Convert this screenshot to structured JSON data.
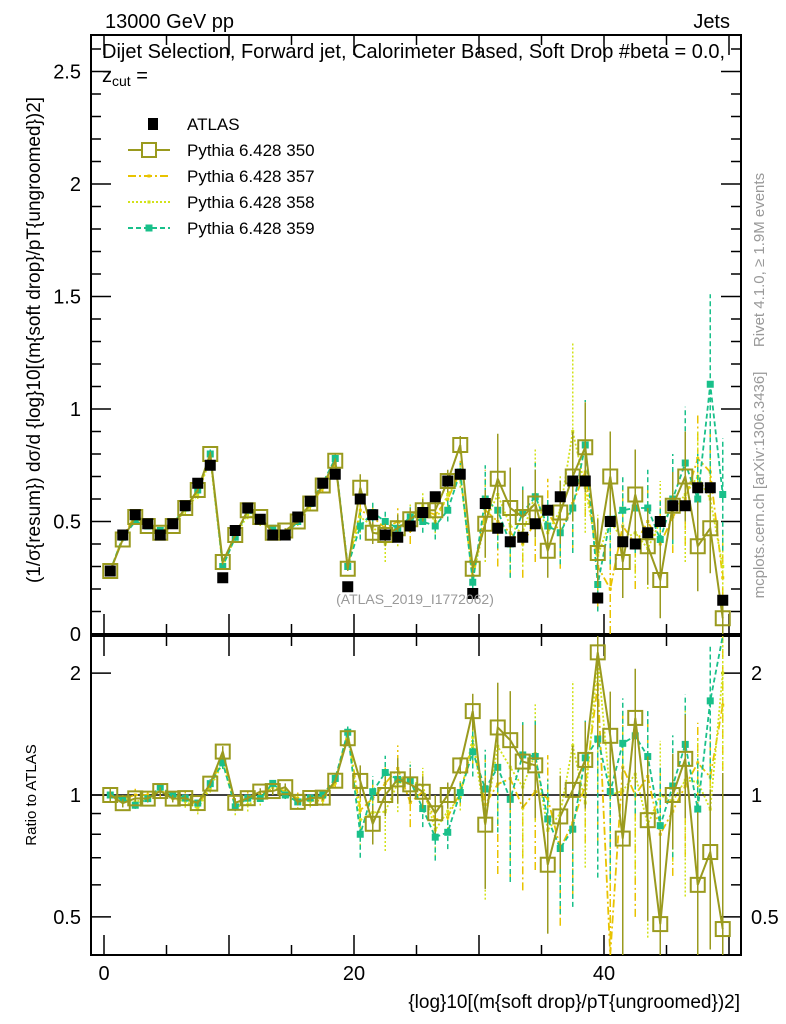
{
  "header": {
    "left": "13000 GeV pp",
    "right": "Jets"
  },
  "side_text": {
    "rivet": "Rivet 4.1.0, ≥ 1.9M events",
    "mcplots": "mcplots.cern.ch [arXiv:1306.3436]"
  },
  "chart_data": [
    {
      "type": "line",
      "title": "Dijet Selection, Forward jet, Calorimeter Based, Soft Drop #beta = 0.0, z",
      "title_sub": "cut",
      "title_tail": " =",
      "ylabel": "(1/σ{resum}) dσ/d {log}10[(m{soft drop}/pT{ungroomed})2]",
      "xlabel": "{log}10[(m{soft drop}/pT{ungroomed})2]",
      "analysis": "(ATLAS_2019_I1772062)",
      "xlim": [
        -1,
        51
      ],
      "ylim": [
        0,
        2.65
      ],
      "yticks": [
        "0",
        "0.5",
        "1",
        "1.5",
        "2",
        "2.5"
      ],
      "xticks": [
        "0",
        "20",
        "40"
      ],
      "legend_position": "top-left",
      "x": [
        0.5,
        1.5,
        2.5,
        3.5,
        4.5,
        5.5,
        6.5,
        7.5,
        8.5,
        9.5,
        10.5,
        11.5,
        12.5,
        13.5,
        14.5,
        15.5,
        16.5,
        17.5,
        18.5,
        19.5,
        20.5,
        21.5,
        22.5,
        23.5,
        24.5,
        25.5,
        26.5,
        27.5,
        28.5,
        29.5,
        30.5,
        31.5,
        32.5,
        33.5,
        34.5,
        35.5,
        36.5,
        37.5,
        38.5,
        39.5,
        40.5,
        41.5,
        42.5,
        43.5,
        44.5,
        45.5,
        46.5,
        47.5,
        48.5,
        49.5
      ],
      "series": [
        {
          "name": "ATLAS",
          "color": "#000000",
          "style": "data",
          "values": [
            0.28,
            0.44,
            0.53,
            0.49,
            0.44,
            0.49,
            0.57,
            0.67,
            0.75,
            0.25,
            0.46,
            0.56,
            0.51,
            0.44,
            0.44,
            0.52,
            0.59,
            0.67,
            0.71,
            0.21,
            0.6,
            0.53,
            0.44,
            0.43,
            0.48,
            0.54,
            0.61,
            0.68,
            0.71,
            0.18,
            0.58,
            0.47,
            0.41,
            0.43,
            0.49,
            0.55,
            0.61,
            0.68,
            0.68,
            0.16,
            0.5,
            0.41,
            0.4,
            0.45,
            0.5,
            0.57,
            0.57,
            0.65,
            0.65,
            0.15
          ],
          "err": [
            0.01,
            0.01,
            0.01,
            0.01,
            0.01,
            0.01,
            0.01,
            0.01,
            0.01,
            0.01,
            0.01,
            0.01,
            0.01,
            0.01,
            0.01,
            0.01,
            0.01,
            0.01,
            0.01,
            0.01,
            0.02,
            0.02,
            0.02,
            0.02,
            0.02,
            0.02,
            0.02,
            0.02,
            0.02,
            0.01,
            0.02,
            0.02,
            0.02,
            0.02,
            0.02,
            0.02,
            0.02,
            0.02,
            0.02,
            0.01,
            0.02,
            0.02,
            0.02,
            0.02,
            0.02,
            0.02,
            0.02,
            0.02,
            0.02,
            0.01
          ]
        },
        {
          "name": "Pythia 6.428 350",
          "color": "#9a9a1e",
          "style": "solid",
          "values": [
            0.28,
            0.42,
            0.52,
            0.48,
            0.45,
            0.48,
            0.56,
            0.64,
            0.8,
            0.32,
            0.44,
            0.55,
            0.52,
            0.45,
            0.46,
            0.5,
            0.58,
            0.66,
            0.77,
            0.29,
            0.65,
            0.45,
            0.44,
            0.47,
            0.51,
            0.55,
            0.55,
            0.68,
            0.84,
            0.29,
            0.49,
            0.69,
            0.56,
            0.52,
            0.58,
            0.37,
            0.54,
            0.7,
            0.83,
            0.36,
            0.7,
            0.32,
            0.62,
            0.39,
            0.24,
            0.57,
            0.7,
            0.39,
            0.47,
            0.07
          ],
          "err": [
            0.01,
            0.01,
            0.01,
            0.01,
            0.01,
            0.01,
            0.01,
            0.01,
            0.01,
            0.01,
            0.01,
            0.01,
            0.01,
            0.01,
            0.01,
            0.01,
            0.01,
            0.01,
            0.01,
            0.01,
            0.06,
            0.05,
            0.05,
            0.06,
            0.05,
            0.05,
            0.06,
            0.05,
            0.04,
            0.03,
            0.15,
            0.2,
            0.18,
            0.12,
            0.15,
            0.12,
            0.14,
            0.2,
            0.2,
            0.15,
            0.2,
            0.16,
            0.2,
            0.17,
            0.17,
            0.15,
            0.2,
            0.2,
            0.2,
            0.1
          ]
        },
        {
          "name": "Pythia 6.428 357",
          "color": "#e8c300",
          "style": "dashdot",
          "values": [
            0.28,
            0.43,
            0.53,
            0.49,
            0.45,
            0.49,
            0.56,
            0.63,
            0.79,
            0.31,
            0.44,
            0.55,
            0.51,
            0.46,
            0.45,
            0.51,
            0.57,
            0.65,
            0.76,
            0.3,
            0.55,
            0.52,
            0.47,
            0.5,
            0.46,
            0.55,
            0.53,
            0.6,
            0.72,
            0.24,
            0.55,
            0.5,
            0.45,
            0.4,
            0.5,
            0.54,
            0.45,
            0.58,
            0.72,
            0.3,
            0.2,
            0.48,
            0.4,
            0.5,
            0.4,
            0.52,
            0.6,
            0.78,
            0.72,
            0.25
          ],
          "err": [
            0.01,
            0.01,
            0.02,
            0.01,
            0.02,
            0.01,
            0.02,
            0.02,
            0.02,
            0.01,
            0.02,
            0.02,
            0.02,
            0.02,
            0.02,
            0.02,
            0.02,
            0.02,
            0.02,
            0.01,
            0.07,
            0.06,
            0.06,
            0.07,
            0.06,
            0.06,
            0.07,
            0.06,
            0.05,
            0.03,
            0.18,
            0.2,
            0.2,
            0.15,
            0.18,
            0.15,
            0.16,
            0.2,
            0.2,
            0.18,
            0.2,
            0.18,
            0.2,
            0.18,
            0.18,
            0.16,
            0.2,
            0.2,
            0.2,
            0.15
          ]
        },
        {
          "name": "Pythia 6.428 358",
          "color": "#d2e21a",
          "style": "dotted",
          "values": [
            0.28,
            0.43,
            0.51,
            0.48,
            0.45,
            0.48,
            0.55,
            0.62,
            0.78,
            0.3,
            0.43,
            0.53,
            0.5,
            0.46,
            0.45,
            0.5,
            0.57,
            0.66,
            0.77,
            0.3,
            0.52,
            0.48,
            0.4,
            0.46,
            0.52,
            0.57,
            0.5,
            0.62,
            0.7,
            0.25,
            0.5,
            0.62,
            0.48,
            0.45,
            0.62,
            0.45,
            0.55,
            0.9,
            0.65,
            0.35,
            0.5,
            0.42,
            0.45,
            0.38,
            0.5,
            0.55,
            0.62,
            0.7,
            0.6,
            0.3
          ],
          "err": [
            0.01,
            0.01,
            0.02,
            0.01,
            0.02,
            0.01,
            0.02,
            0.02,
            0.02,
            0.01,
            0.02,
            0.02,
            0.02,
            0.02,
            0.02,
            0.02,
            0.02,
            0.02,
            0.02,
            0.01,
            0.07,
            0.06,
            0.08,
            0.07,
            0.06,
            0.06,
            0.07,
            0.06,
            0.05,
            0.03,
            0.18,
            0.22,
            0.2,
            0.15,
            0.2,
            0.15,
            0.16,
            0.4,
            0.2,
            0.18,
            0.2,
            0.18,
            0.2,
            0.18,
            0.18,
            0.16,
            0.3,
            0.2,
            0.2,
            0.15
          ]
        },
        {
          "name": "Pythia 6.428 359",
          "color": "#19c08a",
          "style": "dashed",
          "values": [
            0.28,
            0.43,
            0.5,
            0.48,
            0.46,
            0.49,
            0.56,
            0.64,
            0.8,
            0.3,
            0.43,
            0.55,
            0.5,
            0.47,
            0.44,
            0.5,
            0.58,
            0.67,
            0.78,
            0.3,
            0.48,
            0.54,
            0.5,
            0.47,
            0.52,
            0.5,
            0.48,
            0.55,
            0.72,
            0.23,
            0.6,
            0.55,
            0.4,
            0.54,
            0.61,
            0.48,
            0.45,
            0.56,
            0.84,
            0.22,
            0.51,
            0.55,
            0.56,
            0.56,
            0.42,
            0.6,
            0.76,
            0.6,
            1.11,
            0.62
          ],
          "err": [
            0.01,
            0.01,
            0.01,
            0.01,
            0.01,
            0.01,
            0.01,
            0.01,
            0.02,
            0.01,
            0.01,
            0.01,
            0.01,
            0.01,
            0.01,
            0.01,
            0.01,
            0.01,
            0.02,
            0.01,
            0.06,
            0.05,
            0.05,
            0.06,
            0.05,
            0.05,
            0.06,
            0.05,
            0.04,
            0.03,
            0.15,
            0.17,
            0.15,
            0.12,
            0.15,
            0.12,
            0.14,
            0.2,
            0.2,
            0.12,
            0.2,
            0.16,
            0.2,
            0.17,
            0.17,
            0.2,
            0.25,
            0.2,
            0.4,
            0.25
          ]
        }
      ]
    },
    {
      "type": "line",
      "ylabel": "Ratio to ATLAS",
      "yscale": "log",
      "ylim": [
        0.4,
        2.47
      ],
      "yticks": [
        "0.5",
        "1",
        "2"
      ],
      "reference_line": 1
    }
  ]
}
